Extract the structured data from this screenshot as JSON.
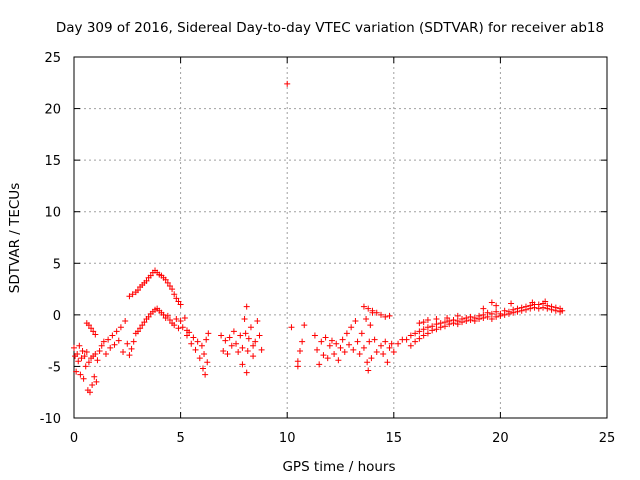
{
  "chart_data": {
    "type": "scatter",
    "title": "Day 309 of 2016, Sidereal Day-to-day VTEC variation (SDTVAR) for receiver ab18",
    "xlabel": "GPS time / hours",
    "ylabel": "SDTVAR / TECUs",
    "xlim": [
      0,
      25
    ],
    "ylim": [
      -10,
      25
    ],
    "x_ticks": [
      "0",
      "5",
      "10",
      "15",
      "20",
      "25"
    ],
    "y_ticks": [
      "-10",
      "-5",
      "0",
      "5",
      "10",
      "15",
      "20",
      "25"
    ],
    "grid": true,
    "marker": "+",
    "marker_color": "#ff0000",
    "series": [
      {
        "name": "SDTVAR",
        "points": [
          [
            0.0,
            -3.2
          ],
          [
            0.05,
            -4.0
          ],
          [
            0.1,
            -5.5
          ],
          [
            0.15,
            -3.8
          ],
          [
            0.2,
            -4.5
          ],
          [
            0.25,
            -3.0
          ],
          [
            0.3,
            -5.8
          ],
          [
            0.35,
            -4.2
          ],
          [
            0.4,
            -3.5
          ],
          [
            0.45,
            -6.2
          ],
          [
            0.5,
            -4.0
          ],
          [
            0.55,
            -5.0
          ],
          [
            0.6,
            -3.6
          ],
          [
            0.65,
            -7.3
          ],
          [
            0.7,
            -4.6
          ],
          [
            0.75,
            -7.5
          ],
          [
            0.8,
            -4.2
          ],
          [
            0.85,
            -6.8
          ],
          [
            0.9,
            -4.0
          ],
          [
            0.95,
            -6.0
          ],
          [
            1.0,
            -3.8
          ],
          [
            1.05,
            -6.5
          ],
          [
            1.1,
            -4.4
          ],
          [
            0.6,
            -0.8
          ],
          [
            0.7,
            -1.0
          ],
          [
            0.8,
            -1.3
          ],
          [
            0.9,
            -1.6
          ],
          [
            1.0,
            -1.9
          ],
          [
            1.2,
            -3.5
          ],
          [
            1.3,
            -3.0
          ],
          [
            1.4,
            -2.6
          ],
          [
            1.5,
            -3.8
          ],
          [
            1.6,
            -2.4
          ],
          [
            1.7,
            -3.2
          ],
          [
            1.8,
            -2.0
          ],
          [
            1.9,
            -2.9
          ],
          [
            2.0,
            -1.6
          ],
          [
            2.1,
            -2.5
          ],
          [
            2.2,
            -1.2
          ],
          [
            2.3,
            -3.6
          ],
          [
            2.4,
            -0.6
          ],
          [
            2.5,
            -2.8
          ],
          [
            2.6,
            -3.9
          ],
          [
            2.7,
            -3.3
          ],
          [
            2.8,
            -2.6
          ],
          [
            2.6,
            1.8
          ],
          [
            2.75,
            2.0
          ],
          [
            2.9,
            2.2
          ],
          [
            3.0,
            2.4
          ],
          [
            3.1,
            2.7
          ],
          [
            3.2,
            2.9
          ],
          [
            3.3,
            3.1
          ],
          [
            3.4,
            3.3
          ],
          [
            3.5,
            3.6
          ],
          [
            3.6,
            3.8
          ],
          [
            3.7,
            4.1
          ],
          [
            3.8,
            4.3
          ],
          [
            3.9,
            4.1
          ],
          [
            4.0,
            3.9
          ],
          [
            4.1,
            3.8
          ],
          [
            4.2,
            3.6
          ],
          [
            4.3,
            3.4
          ],
          [
            4.4,
            3.1
          ],
          [
            4.5,
            2.8
          ],
          [
            4.6,
            2.5
          ],
          [
            4.7,
            2.0
          ],
          [
            4.8,
            1.6
          ],
          [
            4.9,
            1.3
          ],
          [
            5.0,
            1.0
          ],
          [
            2.9,
            -1.8
          ],
          [
            3.0,
            -1.6
          ],
          [
            3.1,
            -1.3
          ],
          [
            3.2,
            -1.0
          ],
          [
            3.3,
            -0.7
          ],
          [
            3.4,
            -0.4
          ],
          [
            3.5,
            -0.2
          ],
          [
            3.6,
            0.1
          ],
          [
            3.7,
            0.3
          ],
          [
            3.8,
            0.5
          ],
          [
            3.9,
            0.6
          ],
          [
            4.0,
            0.4
          ],
          [
            4.1,
            0.2
          ],
          [
            4.2,
            0.0
          ],
          [
            4.3,
            -0.3
          ],
          [
            4.4,
            -0.1
          ],
          [
            4.5,
            -0.5
          ],
          [
            4.6,
            -0.8
          ],
          [
            4.7,
            -1.0
          ],
          [
            4.8,
            -0.4
          ],
          [
            4.9,
            -1.3
          ],
          [
            5.0,
            -0.6
          ],
          [
            5.1,
            -1.2
          ],
          [
            5.2,
            -0.3
          ],
          [
            5.3,
            -1.5
          ],
          [
            5.3,
            -2.0
          ],
          [
            5.4,
            -1.7
          ],
          [
            5.5,
            -2.8
          ],
          [
            5.6,
            -2.2
          ],
          [
            5.7,
            -3.4
          ],
          [
            5.8,
            -2.6
          ],
          [
            5.9,
            -4.2
          ],
          [
            6.0,
            -3.0
          ],
          [
            6.05,
            -5.2
          ],
          [
            6.1,
            -3.8
          ],
          [
            6.15,
            -5.8
          ],
          [
            6.2,
            -2.4
          ],
          [
            6.25,
            -4.6
          ],
          [
            6.3,
            -1.8
          ],
          [
            6.9,
            -2.0
          ],
          [
            7.0,
            -3.5
          ],
          [
            7.1,
            -2.5
          ],
          [
            7.2,
            -3.8
          ],
          [
            7.3,
            -2.2
          ],
          [
            7.4,
            -3.0
          ],
          [
            7.5,
            -1.6
          ],
          [
            7.6,
            -2.8
          ],
          [
            7.7,
            -3.6
          ],
          [
            7.8,
            -2.0
          ],
          [
            7.9,
            -3.2
          ],
          [
            8.0,
            -0.4
          ],
          [
            8.05,
            -1.8
          ],
          [
            8.1,
            0.8
          ],
          [
            8.15,
            -3.5
          ],
          [
            8.2,
            -2.3
          ],
          [
            8.3,
            -1.2
          ],
          [
            8.4,
            -3.0
          ],
          [
            8.5,
            -2.6
          ],
          [
            8.6,
            -0.6
          ],
          [
            8.7,
            -2.0
          ],
          [
            8.8,
            -3.4
          ],
          [
            8.4,
            -4.0
          ],
          [
            8.1,
            -5.6
          ],
          [
            7.9,
            -4.8
          ],
          [
            10.0,
            22.4
          ],
          [
            10.2,
            -1.2
          ],
          [
            10.5,
            -4.5
          ],
          [
            10.6,
            -3.5
          ],
          [
            10.7,
            -2.6
          ],
          [
            10.8,
            -1.0
          ],
          [
            10.5,
            -5.0
          ],
          [
            11.3,
            -2.0
          ],
          [
            11.4,
            -3.4
          ],
          [
            11.5,
            -4.8
          ],
          [
            11.6,
            -2.6
          ],
          [
            11.7,
            -3.9
          ],
          [
            11.8,
            -2.2
          ],
          [
            11.9,
            -4.2
          ],
          [
            12.0,
            -3.0
          ],
          [
            12.1,
            -2.5
          ],
          [
            12.2,
            -3.8
          ],
          [
            12.3,
            -2.8
          ],
          [
            12.4,
            -4.4
          ],
          [
            12.5,
            -3.2
          ],
          [
            12.6,
            -2.4
          ],
          [
            12.7,
            -3.6
          ],
          [
            12.8,
            -1.8
          ],
          [
            12.9,
            -2.9
          ],
          [
            13.0,
            -1.2
          ],
          [
            13.1,
            -3.4
          ],
          [
            13.2,
            -0.6
          ],
          [
            13.3,
            -2.6
          ],
          [
            13.4,
            -3.8
          ],
          [
            13.5,
            -1.8
          ],
          [
            13.6,
            -3.2
          ],
          [
            13.7,
            -0.4
          ],
          [
            13.75,
            -4.6
          ],
          [
            13.8,
            -5.4
          ],
          [
            13.85,
            -2.6
          ],
          [
            13.9,
            -1.0
          ],
          [
            13.95,
            -4.2
          ],
          [
            14.0,
            0.2
          ],
          [
            14.1,
            -2.4
          ],
          [
            14.2,
            -3.6
          ],
          [
            14.4,
            -3.0
          ],
          [
            14.5,
            -3.8
          ],
          [
            14.6,
            -2.6
          ],
          [
            14.7,
            -4.6
          ],
          [
            14.8,
            -3.2
          ],
          [
            14.9,
            -2.8
          ],
          [
            15.0,
            -3.6
          ],
          [
            15.2,
            -2.8
          ],
          [
            15.4,
            -2.4
          ],
          [
            13.6,
            0.8
          ],
          [
            13.8,
            0.6
          ],
          [
            14.0,
            0.4
          ],
          [
            14.2,
            0.2
          ],
          [
            14.4,
            0.0
          ],
          [
            14.6,
            -0.2
          ],
          [
            14.8,
            -0.1
          ],
          [
            15.6,
            -2.4
          ],
          [
            15.8,
            -2.0
          ],
          [
            16.0,
            -1.8
          ],
          [
            16.2,
            -1.6
          ],
          [
            16.4,
            -1.4
          ],
          [
            16.6,
            -1.2
          ],
          [
            16.8,
            -1.1
          ],
          [
            17.0,
            -0.9
          ],
          [
            17.2,
            -0.8
          ],
          [
            17.4,
            -0.7
          ],
          [
            17.6,
            -0.6
          ],
          [
            17.8,
            -0.5
          ],
          [
            18.0,
            -0.6
          ],
          [
            18.2,
            -0.4
          ],
          [
            18.4,
            -0.3
          ],
          [
            18.6,
            -0.2
          ],
          [
            18.8,
            -0.3
          ],
          [
            19.0,
            -0.1
          ],
          [
            19.2,
            0.0
          ],
          [
            19.4,
            0.2
          ],
          [
            19.6,
            0.1
          ],
          [
            19.8,
            0.3
          ],
          [
            20.0,
            0.1
          ],
          [
            20.2,
            0.4
          ],
          [
            20.4,
            0.3
          ],
          [
            20.6,
            0.5
          ],
          [
            20.8,
            0.6
          ],
          [
            21.0,
            0.7
          ],
          [
            21.2,
            0.8
          ],
          [
            21.4,
            0.9
          ],
          [
            21.6,
            1.0
          ],
          [
            21.8,
            1.0
          ],
          [
            22.0,
            1.1
          ],
          [
            22.2,
            0.9
          ],
          [
            22.4,
            0.8
          ],
          [
            22.6,
            0.7
          ],
          [
            22.8,
            0.6
          ],
          [
            15.8,
            -3.0
          ],
          [
            16.0,
            -2.6
          ],
          [
            16.2,
            -2.3
          ],
          [
            16.4,
            -2.0
          ],
          [
            16.6,
            -1.8
          ],
          [
            16.8,
            -1.5
          ],
          [
            17.0,
            -1.4
          ],
          [
            17.2,
            -1.2
          ],
          [
            17.4,
            -1.1
          ],
          [
            17.6,
            -0.9
          ],
          [
            17.8,
            -0.8
          ],
          [
            18.0,
            -0.9
          ],
          [
            18.2,
            -0.7
          ],
          [
            18.4,
            -0.6
          ],
          [
            18.6,
            -0.5
          ],
          [
            18.8,
            -0.6
          ],
          [
            19.0,
            -0.4
          ],
          [
            19.2,
            -0.3
          ],
          [
            19.4,
            -0.2
          ],
          [
            19.6,
            -0.4
          ],
          [
            19.8,
            -0.2
          ],
          [
            20.0,
            -0.1
          ],
          [
            20.2,
            0.0
          ],
          [
            20.4,
            0.1
          ],
          [
            20.6,
            0.2
          ],
          [
            20.8,
            0.3
          ],
          [
            21.0,
            0.4
          ],
          [
            21.2,
            0.5
          ],
          [
            21.4,
            0.6
          ],
          [
            21.6,
            0.7
          ],
          [
            21.8,
            0.6
          ],
          [
            22.0,
            0.7
          ],
          [
            22.2,
            0.6
          ],
          [
            22.4,
            0.5
          ],
          [
            22.6,
            0.4
          ],
          [
            22.8,
            0.3
          ],
          [
            16.2,
            -0.8
          ],
          [
            16.4,
            -0.7
          ],
          [
            16.6,
            -0.5
          ],
          [
            17.0,
            -0.4
          ],
          [
            17.5,
            -0.3
          ],
          [
            19.6,
            1.2
          ],
          [
            19.8,
            0.9
          ],
          [
            20.5,
            1.1
          ],
          [
            21.5,
            1.2
          ],
          [
            22.1,
            1.3
          ],
          [
            22.9,
            0.4
          ],
          [
            19.2,
            0.6
          ],
          [
            18.0,
            -0.1
          ]
        ]
      }
    ]
  }
}
